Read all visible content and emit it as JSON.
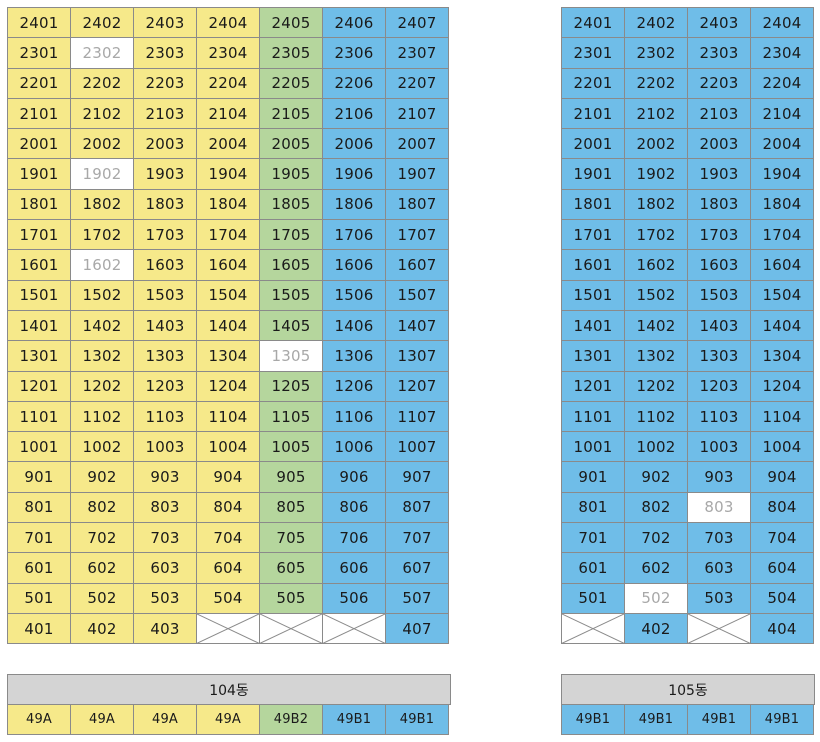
{
  "buildings": [
    {
      "name": "104동",
      "type_row": [
        {
          "label": "49A",
          "color": "y"
        },
        {
          "label": "49A",
          "color": "y"
        },
        {
          "label": "49A",
          "color": "y"
        },
        {
          "label": "49A",
          "color": "y"
        },
        {
          "label": "49B2",
          "color": "g"
        },
        {
          "label": "49B1",
          "color": "b"
        },
        {
          "label": "49B1",
          "color": "b"
        }
      ],
      "floors": [
        {
          "floor": 24,
          "units": [
            "2401",
            "2402",
            "2403",
            "2404",
            "2405",
            "2406",
            "2407"
          ],
          "status": [
            "",
            "",
            "",
            "",
            "",
            "",
            ""
          ]
        },
        {
          "floor": 23,
          "units": [
            "2301",
            "2302",
            "2303",
            "2304",
            "2305",
            "2306",
            "2307"
          ],
          "status": [
            "",
            "w",
            "",
            "",
            "",
            "",
            ""
          ]
        },
        {
          "floor": 22,
          "units": [
            "2201",
            "2202",
            "2203",
            "2204",
            "2205",
            "2206",
            "2207"
          ],
          "status": [
            "",
            "",
            "",
            "",
            "",
            "",
            ""
          ]
        },
        {
          "floor": 21,
          "units": [
            "2101",
            "2102",
            "2103",
            "2104",
            "2105",
            "2106",
            "2107"
          ],
          "status": [
            "",
            "",
            "",
            "",
            "",
            "",
            ""
          ]
        },
        {
          "floor": 20,
          "units": [
            "2001",
            "2002",
            "2003",
            "2004",
            "2005",
            "2006",
            "2007"
          ],
          "status": [
            "",
            "",
            "",
            "",
            "",
            "",
            ""
          ]
        },
        {
          "floor": 19,
          "units": [
            "1901",
            "1902",
            "1903",
            "1904",
            "1905",
            "1906",
            "1907"
          ],
          "status": [
            "",
            "w",
            "",
            "",
            "",
            "",
            ""
          ]
        },
        {
          "floor": 18,
          "units": [
            "1801",
            "1802",
            "1803",
            "1804",
            "1805",
            "1806",
            "1807"
          ],
          "status": [
            "",
            "",
            "",
            "",
            "",
            "",
            ""
          ]
        },
        {
          "floor": 17,
          "units": [
            "1701",
            "1702",
            "1703",
            "1704",
            "1705",
            "1706",
            "1707"
          ],
          "status": [
            "",
            "",
            "",
            "",
            "",
            "",
            ""
          ]
        },
        {
          "floor": 16,
          "units": [
            "1601",
            "1602",
            "1603",
            "1604",
            "1605",
            "1606",
            "1607"
          ],
          "status": [
            "",
            "w",
            "",
            "",
            "",
            "",
            ""
          ]
        },
        {
          "floor": 15,
          "units": [
            "1501",
            "1502",
            "1503",
            "1504",
            "1505",
            "1506",
            "1507"
          ],
          "status": [
            "",
            "",
            "",
            "",
            "",
            "",
            ""
          ]
        },
        {
          "floor": 14,
          "units": [
            "1401",
            "1402",
            "1403",
            "1404",
            "1405",
            "1406",
            "1407"
          ],
          "status": [
            "",
            "",
            "",
            "",
            "",
            "",
            ""
          ]
        },
        {
          "floor": 13,
          "units": [
            "1301",
            "1302",
            "1303",
            "1304",
            "1305",
            "1306",
            "1307"
          ],
          "status": [
            "",
            "",
            "",
            "",
            "w",
            "",
            ""
          ]
        },
        {
          "floor": 12,
          "units": [
            "1201",
            "1202",
            "1203",
            "1204",
            "1205",
            "1206",
            "1207"
          ],
          "status": [
            "",
            "",
            "",
            "",
            "",
            "",
            ""
          ]
        },
        {
          "floor": 11,
          "units": [
            "1101",
            "1102",
            "1103",
            "1104",
            "1105",
            "1106",
            "1107"
          ],
          "status": [
            "",
            "",
            "",
            "",
            "",
            "",
            ""
          ]
        },
        {
          "floor": 10,
          "units": [
            "1001",
            "1002",
            "1003",
            "1004",
            "1005",
            "1006",
            "1007"
          ],
          "status": [
            "",
            "",
            "",
            "",
            "",
            "",
            ""
          ]
        },
        {
          "floor": 9,
          "units": [
            "901",
            "902",
            "903",
            "904",
            "905",
            "906",
            "907"
          ],
          "status": [
            "",
            "",
            "",
            "",
            "",
            "",
            ""
          ]
        },
        {
          "floor": 8,
          "units": [
            "801",
            "802",
            "803",
            "804",
            "805",
            "806",
            "807"
          ],
          "status": [
            "",
            "",
            "",
            "",
            "",
            "",
            ""
          ]
        },
        {
          "floor": 7,
          "units": [
            "701",
            "702",
            "703",
            "704",
            "705",
            "706",
            "707"
          ],
          "status": [
            "",
            "",
            "",
            "",
            "",
            "",
            ""
          ]
        },
        {
          "floor": 6,
          "units": [
            "601",
            "602",
            "603",
            "604",
            "605",
            "606",
            "607"
          ],
          "status": [
            "",
            "",
            "",
            "",
            "",
            "",
            ""
          ]
        },
        {
          "floor": 5,
          "units": [
            "501",
            "502",
            "503",
            "504",
            "505",
            "506",
            "507"
          ],
          "status": [
            "",
            "",
            "",
            "",
            "",
            "",
            ""
          ]
        },
        {
          "floor": 4,
          "units": [
            "401",
            "402",
            "403",
            "",
            "",
            "",
            "407"
          ],
          "status": [
            "",
            "",
            "",
            "x",
            "x",
            "x",
            ""
          ]
        }
      ]
    },
    {
      "name": "105동",
      "type_row": [
        {
          "label": "49B1",
          "color": "b"
        },
        {
          "label": "49B1",
          "color": "b"
        },
        {
          "label": "49B1",
          "color": "b"
        },
        {
          "label": "49B1",
          "color": "b"
        }
      ],
      "floors": [
        {
          "floor": 24,
          "units": [
            "2401",
            "2402",
            "2403",
            "2404"
          ],
          "status": [
            "",
            "",
            "",
            ""
          ]
        },
        {
          "floor": 23,
          "units": [
            "2301",
            "2302",
            "2303",
            "2304"
          ],
          "status": [
            "",
            "",
            "",
            ""
          ]
        },
        {
          "floor": 22,
          "units": [
            "2201",
            "2202",
            "2203",
            "2204"
          ],
          "status": [
            "",
            "",
            "",
            ""
          ]
        },
        {
          "floor": 21,
          "units": [
            "2101",
            "2102",
            "2103",
            "2104"
          ],
          "status": [
            "",
            "",
            "",
            ""
          ]
        },
        {
          "floor": 20,
          "units": [
            "2001",
            "2002",
            "2003",
            "2004"
          ],
          "status": [
            "",
            "",
            "",
            ""
          ]
        },
        {
          "floor": 19,
          "units": [
            "1901",
            "1902",
            "1903",
            "1904"
          ],
          "status": [
            "",
            "",
            "",
            ""
          ]
        },
        {
          "floor": 18,
          "units": [
            "1801",
            "1802",
            "1803",
            "1804"
          ],
          "status": [
            "",
            "",
            "",
            ""
          ]
        },
        {
          "floor": 17,
          "units": [
            "1701",
            "1702",
            "1703",
            "1704"
          ],
          "status": [
            "",
            "",
            "",
            ""
          ]
        },
        {
          "floor": 16,
          "units": [
            "1601",
            "1602",
            "1603",
            "1604"
          ],
          "status": [
            "",
            "",
            "",
            ""
          ]
        },
        {
          "floor": 15,
          "units": [
            "1501",
            "1502",
            "1503",
            "1504"
          ],
          "status": [
            "",
            "",
            "",
            ""
          ]
        },
        {
          "floor": 14,
          "units": [
            "1401",
            "1402",
            "1403",
            "1404"
          ],
          "status": [
            "",
            "",
            "",
            ""
          ]
        },
        {
          "floor": 13,
          "units": [
            "1301",
            "1302",
            "1303",
            "1304"
          ],
          "status": [
            "",
            "",
            "",
            ""
          ]
        },
        {
          "floor": 12,
          "units": [
            "1201",
            "1202",
            "1203",
            "1204"
          ],
          "status": [
            "",
            "",
            "",
            ""
          ]
        },
        {
          "floor": 11,
          "units": [
            "1101",
            "1102",
            "1103",
            "1104"
          ],
          "status": [
            "",
            "",
            "",
            ""
          ]
        },
        {
          "floor": 10,
          "units": [
            "1001",
            "1002",
            "1003",
            "1004"
          ],
          "status": [
            "",
            "",
            "",
            ""
          ]
        },
        {
          "floor": 9,
          "units": [
            "901",
            "902",
            "903",
            "904"
          ],
          "status": [
            "",
            "",
            "",
            ""
          ]
        },
        {
          "floor": 8,
          "units": [
            "801",
            "802",
            "803",
            "804"
          ],
          "status": [
            "",
            "",
            "w",
            ""
          ]
        },
        {
          "floor": 7,
          "units": [
            "701",
            "702",
            "703",
            "704"
          ],
          "status": [
            "",
            "",
            "",
            ""
          ]
        },
        {
          "floor": 6,
          "units": [
            "601",
            "602",
            "603",
            "604"
          ],
          "status": [
            "",
            "",
            "",
            ""
          ]
        },
        {
          "floor": 5,
          "units": [
            "501",
            "502",
            "503",
            "504"
          ],
          "status": [
            "",
            "w",
            "",
            ""
          ]
        },
        {
          "floor": 4,
          "units": [
            "",
            "402",
            "",
            "404"
          ],
          "status": [
            "x",
            "",
            "x",
            ""
          ]
        }
      ]
    }
  ],
  "column_colors": {
    "104동": [
      "y",
      "y",
      "y",
      "y",
      "g",
      "b",
      "b"
    ],
    "105동": [
      "b",
      "b",
      "b",
      "b"
    ]
  }
}
